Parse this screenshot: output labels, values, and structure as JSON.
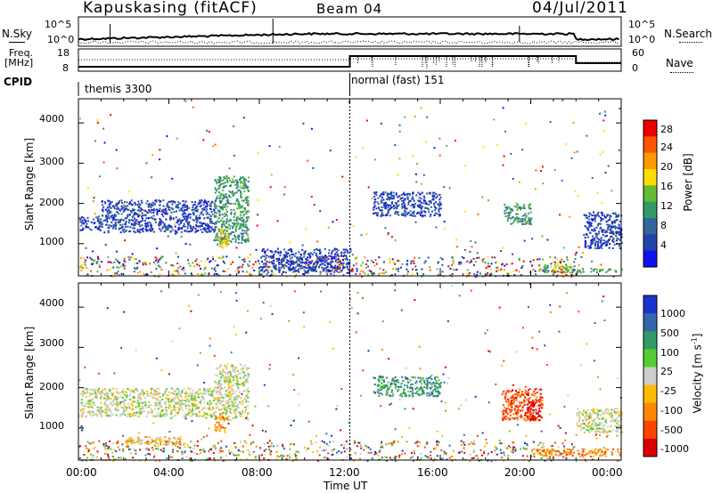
{
  "header": {
    "station": "Kapuskasing (fitACF)",
    "beam": "Beam 04",
    "date": "04/Jul/2011"
  },
  "noise_panel": {
    "left_label": "N.Sky",
    "right_label": "N.Search",
    "left_ticks": [
      "10^5",
      "10^0"
    ],
    "right_ticks": [
      "10^5",
      "10^0"
    ]
  },
  "freq_panel": {
    "left_label_top": "Freq.",
    "left_label_bottom": "[MHz]",
    "right_label": "Nave",
    "left_ticks": [
      "18",
      "8"
    ],
    "right_ticks": [
      "60",
      "0"
    ]
  },
  "cpid": {
    "label": "CPID",
    "segments": [
      {
        "name": "themis 3300",
        "start_hour": 0,
        "end_hour": 12
      },
      {
        "name": "normal (fast) 151",
        "start_hour": 12,
        "end_hour": 24
      }
    ]
  },
  "power_colorbar": {
    "label": "Power [dB]",
    "ticks": [
      "28",
      "24",
      "20",
      "16",
      "12",
      "8",
      "4"
    ],
    "colors": [
      "#ee0000",
      "#ff5500",
      "#ff9900",
      "#ffdd00",
      "#66bb33",
      "#339966",
      "#336699",
      "#2244aa",
      "#1111ee"
    ]
  },
  "velocity_colorbar": {
    "label_main": "Velocity  [m s",
    "label_sup": "-1",
    "label_end": "]",
    "ticks": [
      "1000",
      "500",
      "100",
      "25",
      "-25",
      "-100",
      "-500",
      "-1000"
    ],
    "colors": [
      "#1a33cc",
      "#3366aa",
      "#339966",
      "#55cc33",
      "#cccccc",
      "#ffbb00",
      "#ff8800",
      "#ff4400",
      "#dd0000"
    ]
  },
  "axes": {
    "y_label": "Slant Range [km]",
    "y_ticks": [
      "4000",
      "3000",
      "2000",
      "1000"
    ],
    "x_label": "Time UT",
    "x_ticks": [
      "00:00",
      "04:00",
      "08:00",
      "12:00",
      "16:00",
      "20:00",
      "00:00"
    ]
  },
  "chart_data": {
    "type": "heatmap",
    "x_unit": "hours UT",
    "xlim": [
      0,
      24
    ],
    "y_unit": "km",
    "ylim": [
      200,
      4600
    ],
    "power_panel": {
      "regions": [
        {
          "t": [
            0.0,
            1.0
          ],
          "r": [
            1350,
            1700
          ],
          "level": 7
        },
        {
          "t": [
            1.0,
            6.0
          ],
          "r": [
            1300,
            2100
          ],
          "level": 7
        },
        {
          "t": [
            6.0,
            7.5
          ],
          "r": [
            1000,
            2700
          ],
          "level": 5
        },
        {
          "t": [
            6.2,
            6.6
          ],
          "r": [
            900,
            1400
          ],
          "level": 3
        },
        {
          "t": [
            8.0,
            12.0
          ],
          "r": [
            300,
            900
          ],
          "level": 7
        },
        {
          "t": [
            13.0,
            16.0
          ],
          "r": [
            1700,
            2300
          ],
          "level": 7
        },
        {
          "t": [
            18.8,
            20.0
          ],
          "r": [
            1500,
            2000
          ],
          "level": 5
        },
        {
          "t": [
            20.3,
            21.8
          ],
          "r": [
            300,
            500
          ],
          "level": 4
        },
        {
          "t": [
            21.0,
            21.4
          ],
          "r": [
            300,
            400
          ],
          "level": 0
        },
        {
          "t": [
            21.8,
            24.0
          ],
          "r": [
            300,
            400
          ],
          "level": 5
        },
        {
          "t": [
            22.3,
            24.0
          ],
          "r": [
            900,
            1800
          ],
          "level": 7
        }
      ]
    },
    "velocity_panel": {
      "regions": [
        {
          "t": [
            0.0,
            6.0
          ],
          "r": [
            1300,
            2000
          ],
          "level": 4
        },
        {
          "t": [
            6.0,
            7.5
          ],
          "r": [
            1200,
            2600
          ],
          "level": 4
        },
        {
          "t": [
            6.0,
            6.5
          ],
          "r": [
            900,
            1300
          ],
          "level": 6
        },
        {
          "t": [
            2.0,
            4.5
          ],
          "r": [
            600,
            800
          ],
          "level": 5
        },
        {
          "t": [
            13.0,
            16.0
          ],
          "r": [
            1800,
            2300
          ],
          "level": 2
        },
        {
          "t": [
            18.7,
            20.5
          ],
          "r": [
            1200,
            2000
          ],
          "level": 7
        },
        {
          "t": [
            19.8,
            20.4
          ],
          "r": [
            1200,
            1700
          ],
          "level": 8
        },
        {
          "t": [
            20.0,
            24.0
          ],
          "r": [
            300,
            500
          ],
          "level": 6
        },
        {
          "t": [
            22.0,
            24.0
          ],
          "r": [
            900,
            1500
          ],
          "level": 4
        }
      ]
    }
  }
}
